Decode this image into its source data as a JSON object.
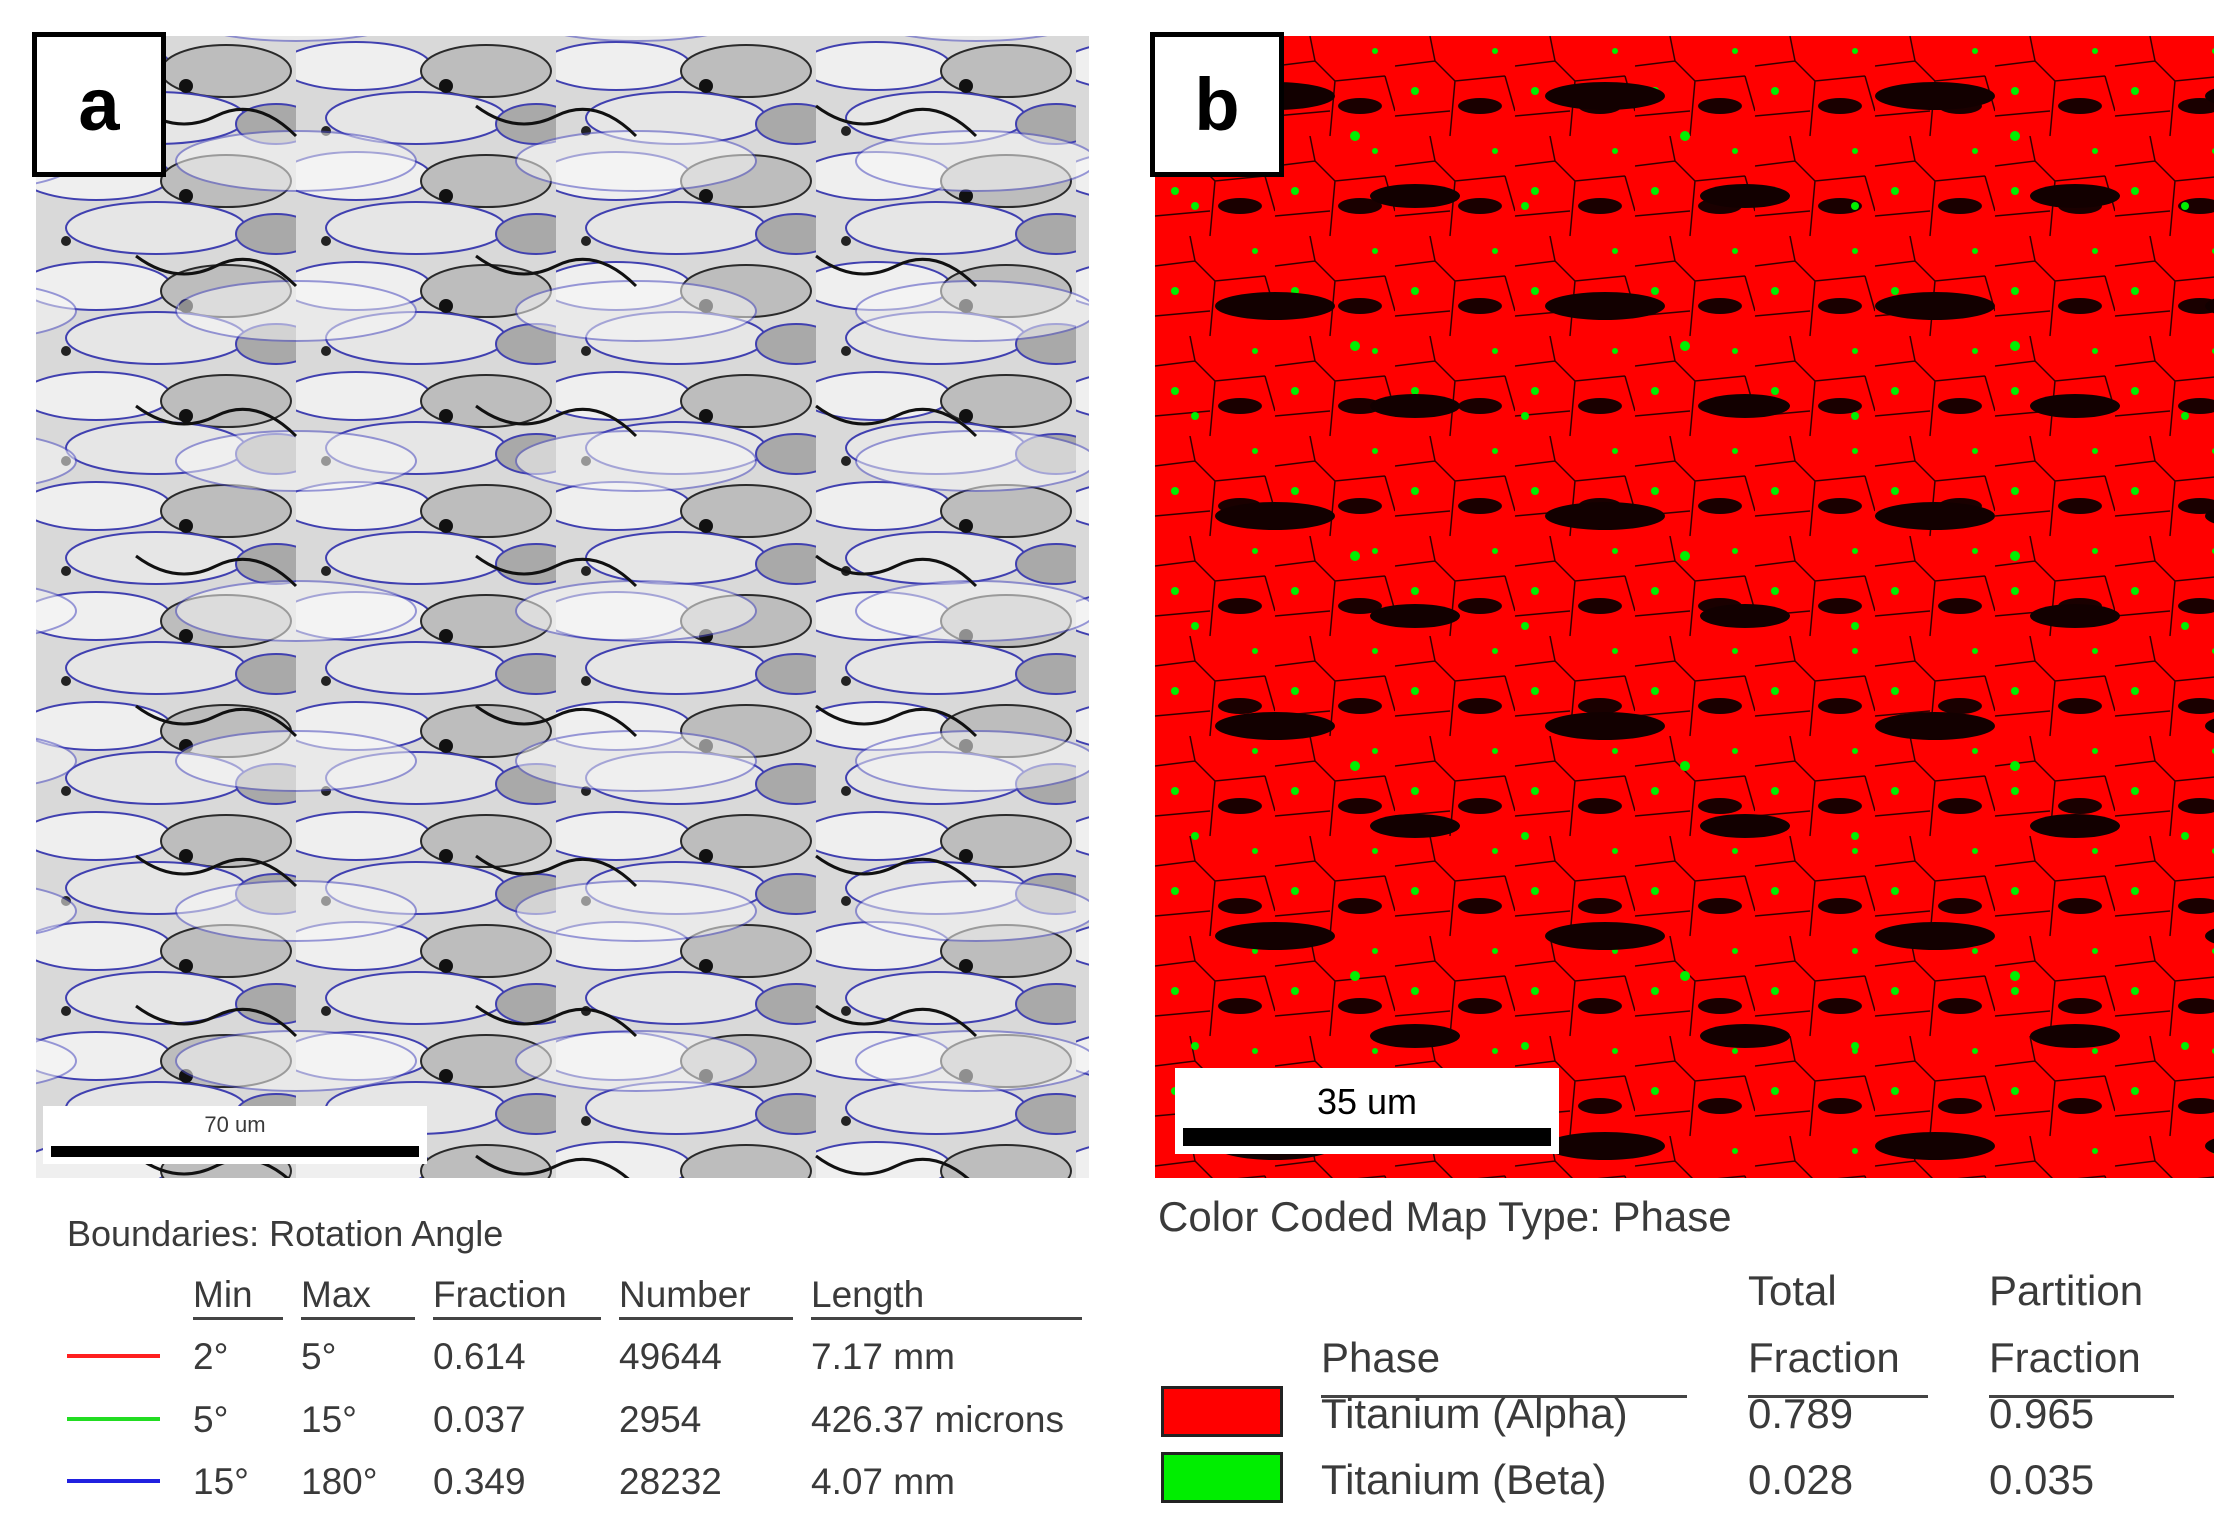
{
  "panels": [
    {
      "label": "a",
      "scale_bar": "70 um",
      "legend": {
        "title": "Boundaries: Rotation Angle",
        "columns": [
          "Min",
          "Max",
          "Fraction",
          "Number",
          "Length"
        ],
        "rows": [
          {
            "color": "#ff2020",
            "cells": [
              "2°",
              "5°",
              0.614,
              49644,
              "7.17 mm"
            ]
          },
          {
            "color": "#22dd22",
            "cells": [
              "5°",
              "15°",
              0.037,
              2954,
              "426.37 microns"
            ]
          },
          {
            "color": "#2020e0",
            "cells": [
              "15°",
              "180°",
              0.349,
              28232,
              "4.07 mm"
            ]
          }
        ]
      }
    },
    {
      "label": "b",
      "scale_bar": "35 um",
      "legend": {
        "title": "Color Coded Map Type: Phase",
        "columns": [
          "Phase",
          "Total Fraction",
          "Partition Fraction"
        ],
        "rows": [
          {
            "color": "#ff0000",
            "cells": [
              "Titanium (Alpha)",
              0.789,
              0.965
            ]
          },
          {
            "color": "#00ee00",
            "cells": [
              "Titanium (Beta)",
              0.028,
              0.035
            ]
          }
        ]
      }
    }
  ]
}
